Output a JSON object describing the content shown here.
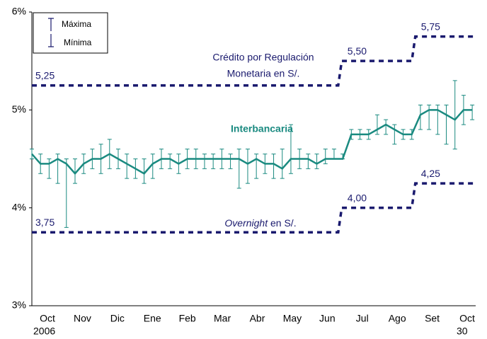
{
  "chart_data": {
    "type": "range_line",
    "ylim": [
      3,
      6
    ],
    "yticks": [
      {
        "value": 3,
        "label": "3%"
      },
      {
        "value": 4,
        "label": "4%"
      },
      {
        "value": 5,
        "label": "5%"
      },
      {
        "value": 6,
        "label": "6%"
      }
    ],
    "xlim": [
      0,
      12.85
    ],
    "categories": [
      "Oct",
      "Nov",
      "Dic",
      "Ene",
      "Feb",
      "Mar",
      "Abr",
      "May",
      "Jun",
      "Jul",
      "Ago",
      "Set",
      "Oct"
    ],
    "start_year": "2006",
    "end_day": "30",
    "legend": {
      "high": "Máxima",
      "low": "Mínima"
    },
    "series": [
      {
        "name": "Interbancaria",
        "color": "#1a8a80",
        "x": [
          0,
          0.25,
          0.5,
          0.75,
          1,
          1.25,
          1.5,
          1.75,
          2,
          2.25,
          2.5,
          2.75,
          3,
          3.25,
          3.5,
          3.75,
          4,
          4.25,
          4.5,
          4.75,
          5,
          5.25,
          5.5,
          5.75,
          6,
          6.25,
          6.5,
          6.75,
          7,
          7.25,
          7.5,
          7.75,
          8,
          8.25,
          8.5,
          8.75,
          9,
          9.25,
          9.5,
          9.75,
          10,
          10.25,
          10.5,
          10.75,
          11,
          11.25,
          11.5,
          11.75,
          12,
          12.25,
          12.5,
          12.75
        ],
        "values": [
          4.55,
          4.45,
          4.45,
          4.5,
          4.45,
          4.35,
          4.45,
          4.5,
          4.5,
          4.55,
          4.5,
          4.45,
          4.4,
          4.35,
          4.45,
          4.5,
          4.5,
          4.45,
          4.5,
          4.5,
          4.5,
          4.5,
          4.5,
          4.5,
          4.5,
          4.45,
          4.5,
          4.45,
          4.45,
          4.4,
          4.5,
          4.5,
          4.5,
          4.45,
          4.5,
          4.5,
          4.5,
          4.75,
          4.75,
          4.75,
          4.8,
          4.85,
          4.8,
          4.75,
          4.75,
          4.95,
          5.0,
          5.0,
          4.95,
          4.9,
          5.0,
          5.0
        ],
        "high": [
          4.6,
          4.55,
          4.5,
          4.55,
          4.5,
          4.5,
          4.55,
          4.6,
          4.65,
          4.7,
          4.6,
          4.55,
          4.5,
          4.5,
          4.55,
          4.6,
          4.55,
          4.55,
          4.6,
          4.6,
          4.55,
          4.55,
          4.6,
          4.55,
          4.6,
          4.6,
          4.55,
          4.55,
          4.55,
          4.6,
          4.85,
          4.6,
          4.55,
          4.55,
          4.6,
          4.6,
          4.55,
          4.8,
          4.8,
          4.8,
          4.95,
          4.9,
          4.85,
          4.8,
          4.8,
          5.05,
          5.05,
          5.05,
          5.05,
          5.3,
          5.15,
          5.05
        ],
        "low": [
          4.5,
          4.35,
          4.3,
          4.25,
          3.8,
          4.25,
          4.35,
          4.4,
          4.35,
          4.4,
          4.4,
          4.3,
          4.3,
          4.25,
          4.3,
          4.4,
          4.4,
          4.35,
          4.4,
          4.4,
          4.4,
          4.4,
          4.4,
          4.4,
          4.2,
          4.25,
          4.3,
          4.35,
          4.3,
          4.3,
          4.35,
          4.4,
          4.4,
          4.4,
          4.45,
          4.5,
          4.5,
          4.7,
          4.7,
          4.7,
          4.75,
          4.75,
          4.65,
          4.7,
          4.7,
          4.8,
          4.8,
          4.75,
          4.65,
          4.6,
          4.85,
          4.9
        ]
      }
    ],
    "step_x": [
      0,
      8.87,
      11.0,
      12.85
    ],
    "step_lines": [
      {
        "name_lines": [
          "Crédito por Regulación",
          "Monetaria en S/."
        ],
        "color": "#1a1a6e",
        "values": [
          5.25,
          5.5,
          5.75
        ],
        "value_labels": [
          "5,25",
          "5,50",
          "5,75"
        ]
      },
      {
        "name_lines": [
          "Overnight",
          " en S/."
        ],
        "color": "#1a1a6e",
        "values": [
          3.75,
          4.0,
          4.25
        ],
        "value_labels": [
          "3,75",
          "4,00",
          "4,25"
        ]
      }
    ]
  }
}
